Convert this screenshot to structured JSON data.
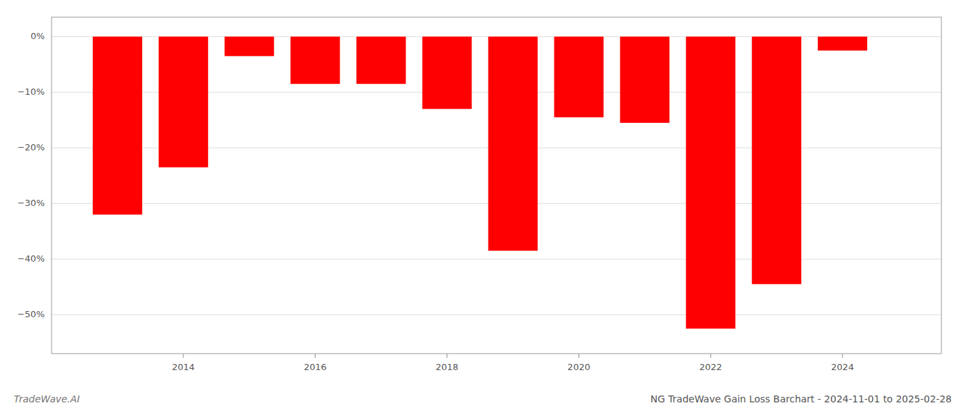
{
  "chart_data": {
    "type": "bar",
    "title": "NG TradeWave Gain Loss Barchart - 2024-11-01 to 2025-02-28",
    "annotations": [
      "TradeWave.AI"
    ],
    "x": [
      2013,
      2014,
      2015,
      2016,
      2017,
      2018,
      2019,
      2020,
      2021,
      2022,
      2023,
      2024
    ],
    "values": [
      -32.0,
      -23.5,
      -3.5,
      -8.5,
      -8.5,
      -13.0,
      -38.5,
      -14.5,
      -15.5,
      -52.5,
      -44.5,
      -2.5
    ],
    "color": "#ff0000",
    "xlim": [
      2012.0,
      2025.5
    ],
    "xticks": [
      2014,
      2016,
      2018,
      2020,
      2022,
      2024
    ],
    "ylim": [
      -57,
      3.5
    ],
    "yticks": [
      {
        "value": 0,
        "label": "0%"
      },
      {
        "value": -10,
        "label": "−10%"
      },
      {
        "value": -20,
        "label": "−20%"
      },
      {
        "value": -30,
        "label": "−30%"
      },
      {
        "value": -40,
        "label": "−40%"
      },
      {
        "value": -50,
        "label": "−50%"
      }
    ],
    "grid": true
  }
}
